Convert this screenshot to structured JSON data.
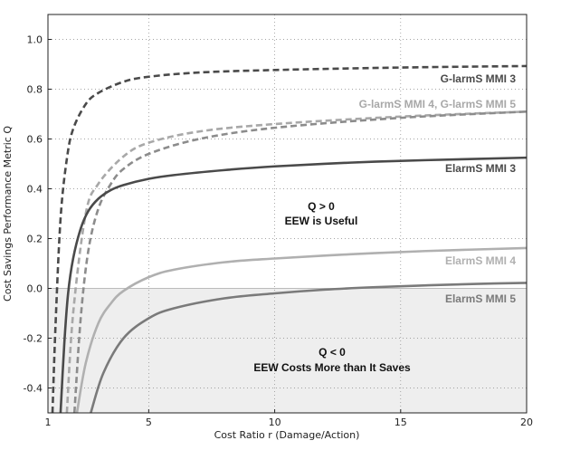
{
  "chart_data": {
    "type": "line",
    "title": "",
    "xlabel": "Cost Ratio r (Damage/Action)",
    "ylabel": "Cost Savings Performance Metric Q",
    "xlim": [
      1,
      20
    ],
    "ylim": [
      -0.5,
      1.1
    ],
    "xticks": [
      "1",
      "5",
      "10",
      "15",
      "20"
    ],
    "yticks": [
      "-0.4",
      "-0.2",
      "0.0",
      "0.2",
      "0.4",
      "0.6",
      "0.8",
      "1.0"
    ],
    "grid": true,
    "negative_region_fill": "#eeeeee",
    "series": [
      {
        "name": "G-larmS MMI 3",
        "color": "#4a4a4a",
        "dash": true,
        "x": [
          1.18,
          1.3,
          1.5,
          1.75,
          2,
          2.5,
          3,
          4,
          5,
          7,
          10,
          15,
          20
        ],
        "y": [
          -0.5,
          -0.15,
          0.28,
          0.52,
          0.64,
          0.74,
          0.785,
          0.83,
          0.85,
          0.867,
          0.877,
          0.887,
          0.893
        ]
      },
      {
        "name": "G-larmS MMI 4, G-larmS MMI 5",
        "color": "#a8a8a8",
        "dash": true,
        "x": [
          1.75,
          2,
          2.5,
          3,
          4,
          5,
          7,
          10,
          15,
          20
        ],
        "y": [
          -0.5,
          -0.1,
          0.3,
          0.42,
          0.53,
          0.585,
          0.63,
          0.66,
          0.69,
          0.71
        ]
      },
      {
        "name": "",
        "color": "#8c8c8c",
        "dash": true,
        "x": [
          2.05,
          2.3,
          2.6,
          3,
          3.5,
          4,
          5,
          7,
          10,
          15,
          20
        ],
        "y": [
          -0.5,
          -0.12,
          0.15,
          0.32,
          0.42,
          0.48,
          0.54,
          0.6,
          0.645,
          0.685,
          0.71
        ]
      },
      {
        "name": "ElarmS MMI 3",
        "color": "#4a4a4a",
        "dash": false,
        "x": [
          1.5,
          1.65,
          1.8,
          2,
          2.3,
          2.6,
          3,
          3.5,
          4,
          5,
          6,
          8,
          10,
          13,
          16,
          20
        ],
        "y": [
          -0.5,
          -0.22,
          -0.02,
          0.12,
          0.24,
          0.31,
          0.36,
          0.395,
          0.415,
          0.44,
          0.455,
          0.475,
          0.49,
          0.505,
          0.515,
          0.525
        ]
      },
      {
        "name": "ElarmS MMI 4",
        "color": "#b0b0b0",
        "dash": false,
        "x": [
          2.15,
          2.5,
          3,
          3.5,
          4,
          5,
          6,
          8,
          10,
          13,
          16,
          20
        ],
        "y": [
          -0.5,
          -0.3,
          -0.14,
          -0.06,
          -0.01,
          0.045,
          0.075,
          0.105,
          0.12,
          0.137,
          0.15,
          0.162
        ]
      },
      {
        "name": "ElarmS MMI 5",
        "color": "#7a7a7a",
        "dash": false,
        "x": [
          2.7,
          3.2,
          4,
          5,
          6,
          8,
          10,
          12,
          14,
          16,
          18,
          20
        ],
        "y": [
          -0.5,
          -0.34,
          -0.2,
          -0.12,
          -0.08,
          -0.04,
          -0.02,
          -0.005,
          0.005,
          0.012,
          0.018,
          0.022
        ]
      }
    ],
    "annotations": [
      {
        "line1": "Q > 0",
        "line2": "EEW is Useful"
      },
      {
        "line1": "Q < 0",
        "line2": "EEW Costs More than It Saves"
      }
    ]
  }
}
